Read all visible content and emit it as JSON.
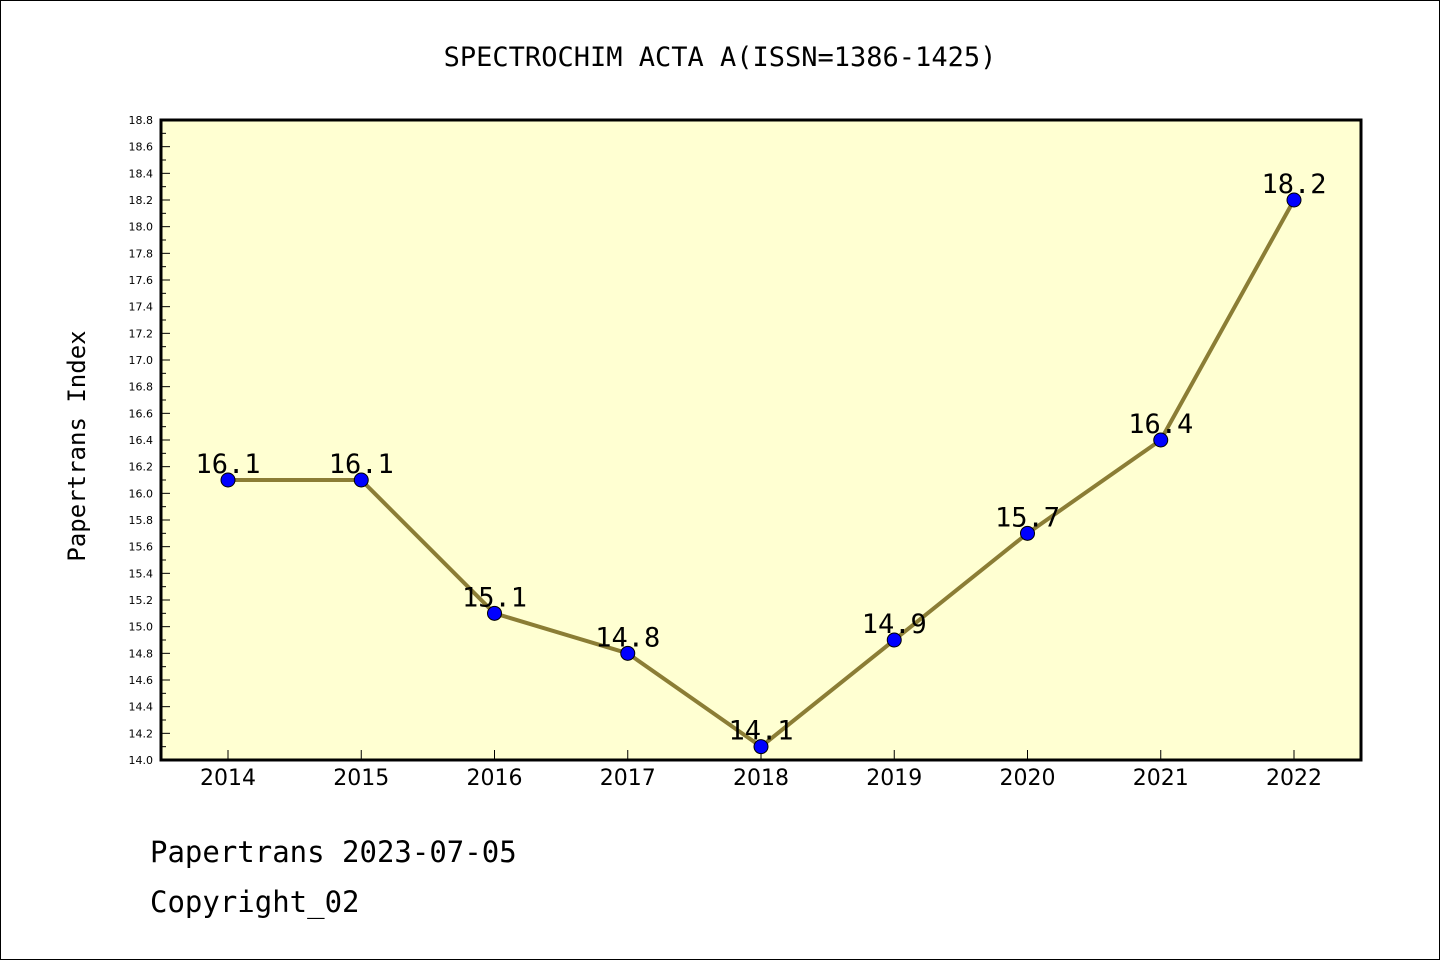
{
  "chart_data": {
    "type": "line",
    "title": "SPECTROCHIM ACTA A(ISSN=1386-1425)",
    "xlabel": "",
    "ylabel": "Papertrans Index",
    "categories": [
      "2014",
      "2015",
      "2016",
      "2017",
      "2018",
      "2019",
      "2020",
      "2021",
      "2022"
    ],
    "values": [
      16.1,
      16.1,
      15.1,
      14.8,
      14.1,
      14.9,
      15.7,
      16.4,
      18.2
    ],
    "data_labels": [
      "16.1",
      "16.1",
      "15.1",
      "14.8",
      "14.1",
      "14.9",
      "15.7",
      "16.4",
      "18.2"
    ],
    "ylim": [
      14.0,
      18.8
    ],
    "y_ticks": [
      "14.0",
      "14.2",
      "14.4",
      "14.6",
      "14.8",
      "15.0",
      "15.2",
      "15.4",
      "15.6",
      "15.8",
      "16.0",
      "16.2",
      "16.4",
      "16.6",
      "16.8",
      "17.0",
      "17.2",
      "17.4",
      "17.6",
      "17.8",
      "18.0",
      "18.2",
      "18.4",
      "18.6",
      "18.8"
    ],
    "grid": false,
    "legend": "none",
    "colors": {
      "plot_background": "#ffffd2",
      "line": "#8b7d35",
      "marker": "#0000ff"
    }
  },
  "footer": {
    "line1": "Papertrans 2023-07-05",
    "line2": "Copyright_02"
  }
}
